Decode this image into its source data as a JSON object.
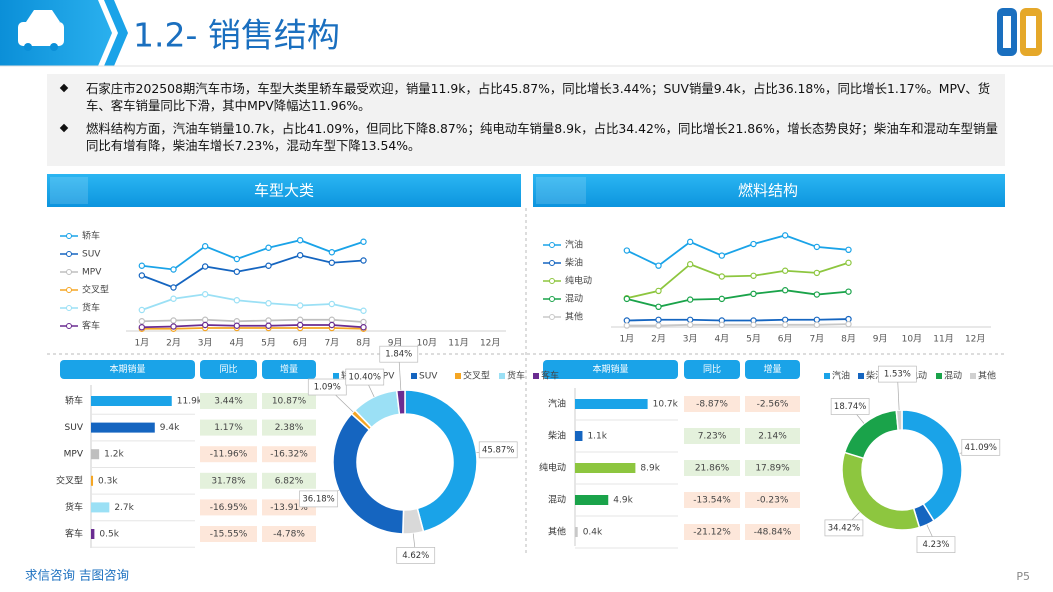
{
  "header": {
    "title": "1.2- 销售结构"
  },
  "bullets": [
    "石家庄市202508期汽车市场，车型大类里轿车最受欢迎，销量11.9k，占比45.87%，同比增长3.44%；SUV销量9.4k，占比36.18%，同比增长1.17%。MPV、货车、客车销量同比下滑，其中MPV降幅达11.96%。",
    "燃料结构方面，汽油车销量10.7k，占比41.09%，但同比下降8.87%；纯电动车销量8.9k，占比34.42%，同比增长21.86%，增长态势良好；柴油车和混动车型销量同比有增有降，柴油车增长7.23%，混动车型下降13.54%。"
  ],
  "panels": [
    {
      "title": "车型大类"
    },
    {
      "title": "燃料结构"
    }
  ],
  "chart_data": [
    {
      "type": "line",
      "categories": [
        "1月",
        "2月",
        "3月",
        "4月",
        "5月",
        "6月",
        "7月",
        "8月",
        "9月",
        "10月",
        "11月",
        "12月"
      ],
      "ylim": [
        0,
        14
      ],
      "legend": "left",
      "series": [
        {
          "name": "轿车",
          "color": "#1aa3e8",
          "values": [
            8.7,
            8.2,
            11.3,
            9.6,
            11.1,
            12.1,
            10.5,
            11.9,
            null,
            null,
            null,
            null
          ]
        },
        {
          "name": "SUV",
          "color": "#1565c0",
          "values": [
            7.4,
            5.8,
            8.6,
            7.9,
            8.7,
            10.1,
            9.1,
            9.4,
            null,
            null,
            null,
            null
          ]
        },
        {
          "name": "MPV",
          "color": "#bfbfbf",
          "values": [
            1.3,
            1.4,
            1.5,
            1.3,
            1.4,
            1.5,
            1.5,
            1.2,
            null,
            null,
            null,
            null
          ]
        },
        {
          "name": "交叉型",
          "color": "#f5a623",
          "values": [
            0.3,
            0.3,
            0.4,
            0.4,
            0.4,
            0.4,
            0.4,
            0.3,
            null,
            null,
            null,
            null
          ]
        },
        {
          "name": "货车",
          "color": "#9be0f5",
          "values": [
            2.8,
            4.3,
            4.9,
            4.1,
            3.7,
            3.4,
            3.6,
            2.7,
            null,
            null,
            null,
            null
          ]
        },
        {
          "name": "客车",
          "color": "#6a2c91",
          "values": [
            0.5,
            0.6,
            0.8,
            0.7,
            0.7,
            0.8,
            0.8,
            0.5,
            null,
            null,
            null,
            null
          ]
        }
      ]
    },
    {
      "type": "line",
      "categories": [
        "1月",
        "2月",
        "3月",
        "4月",
        "5月",
        "6月",
        "7月",
        "8月",
        "9月",
        "10月",
        "11月",
        "12月"
      ],
      "ylim": [
        0,
        14
      ],
      "legend": "left",
      "series": [
        {
          "name": "汽油",
          "color": "#1aa3e8",
          "values": [
            10.6,
            8.5,
            11.8,
            9.9,
            11.5,
            12.7,
            11.1,
            10.7,
            null,
            null,
            null,
            null
          ]
        },
        {
          "name": "柴油",
          "color": "#1565c0",
          "values": [
            0.9,
            1.0,
            1.0,
            0.9,
            0.9,
            1.0,
            1.0,
            1.1,
            null,
            null,
            null,
            null
          ]
        },
        {
          "name": "纯电动",
          "color": "#8dc63f",
          "values": [
            4.0,
            5.0,
            8.7,
            7.0,
            7.1,
            7.8,
            7.5,
            8.9,
            null,
            null,
            null,
            null
          ]
        },
        {
          "name": "混动",
          "color": "#1aa34a",
          "values": [
            3.9,
            2.8,
            3.8,
            3.9,
            4.6,
            5.1,
            4.5,
            4.9,
            null,
            null,
            null,
            null
          ]
        },
        {
          "name": "其他",
          "color": "#c8c8c8",
          "values": [
            0.2,
            0.2,
            0.3,
            0.3,
            0.3,
            0.3,
            0.3,
            0.4,
            null,
            null,
            null,
            null
          ]
        }
      ]
    },
    {
      "type": "bar",
      "orientation": "horizontal",
      "headers": [
        "本期销量",
        "同比",
        "增量"
      ],
      "xlim": [
        0,
        14
      ],
      "categories": [
        "轿车",
        "SUV",
        "MPV",
        "交叉型",
        "货车",
        "客车"
      ],
      "values": [
        11.9,
        9.4,
        1.2,
        0.3,
        2.7,
        0.5
      ],
      "value_labels": [
        "11.9k",
        "9.4k",
        "1.2k",
        "0.3k",
        "2.7k",
        "0.5k"
      ],
      "colors": [
        "#1aa3e8",
        "#1565c0",
        "#bfbfbf",
        "#f5a623",
        "#9be0f5",
        "#6a2c91"
      ],
      "yoy": [
        "3.44%",
        "1.17%",
        "-11.96%",
        "31.78%",
        "-16.95%",
        "-15.55%"
      ],
      "increment": [
        "10.87%",
        "2.38%",
        "-16.32%",
        "6.82%",
        "-13.91%",
        "-4.78%"
      ]
    },
    {
      "type": "bar",
      "orientation": "horizontal",
      "headers": [
        "本期销量",
        "同比",
        "增量"
      ],
      "xlim": [
        0,
        14
      ],
      "categories": [
        "汽油",
        "柴油",
        "纯电动",
        "混动",
        "其他"
      ],
      "values": [
        10.7,
        1.1,
        8.9,
        4.9,
        0.4
      ],
      "value_labels": [
        "10.7k",
        "1.1k",
        "8.9k",
        "4.9k",
        "0.4k"
      ],
      "colors": [
        "#1aa3e8",
        "#1565c0",
        "#8dc63f",
        "#1aa34a",
        "#c8c8c8"
      ],
      "yoy": [
        "-8.87%",
        "7.23%",
        "21.86%",
        "-13.54%",
        "-21.12%"
      ],
      "increment": [
        "-2.56%",
        "2.14%",
        "17.89%",
        "-0.23%",
        "-48.84%"
      ]
    },
    {
      "type": "pie",
      "donut": true,
      "legend": "top",
      "categories": [
        "轿车",
        "MPV",
        "SUV",
        "交叉型",
        "货车",
        "客车"
      ],
      "values": [
        45.87,
        4.62,
        36.18,
        1.09,
        10.4,
        1.84
      ],
      "value_labels": [
        "45.87%",
        "4.62%",
        "36.18%",
        "1.09%",
        "10.40%",
        "1.84%"
      ],
      "colors": [
        "#1aa3e8",
        "#d9d9d9",
        "#1565c0",
        "#f5a623",
        "#9be0f5",
        "#6a2c91"
      ]
    },
    {
      "type": "pie",
      "donut": true,
      "legend": "top",
      "categories": [
        "汽油",
        "柴油",
        "纯电动",
        "混动",
        "其他"
      ],
      "values": [
        41.09,
        4.23,
        34.42,
        18.74,
        1.53
      ],
      "value_labels": [
        "41.09%",
        "4.23%",
        "34.42%",
        "18.74%",
        "1.53%"
      ],
      "colors": [
        "#1aa3e8",
        "#1565c0",
        "#8dc63f",
        "#1aa34a",
        "#d0d0d0"
      ]
    }
  ],
  "footer": {
    "brand": "求信咨询 吉图咨询",
    "page": "P5"
  }
}
